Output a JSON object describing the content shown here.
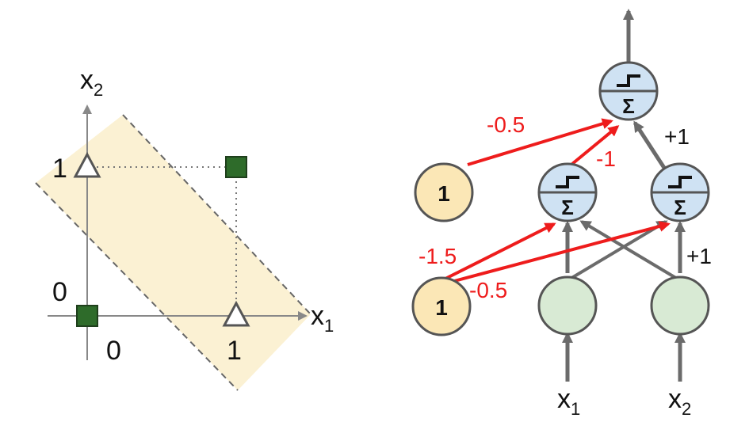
{
  "colors": {
    "band_fill": "#fbf1d3",
    "band_edge": "#666666",
    "square_fill": "#2e6b2a",
    "square_edge": "#1f3f1c",
    "triangle_fill": "#ffffff",
    "triangle_edge": "#555555",
    "axis": "#888888",
    "dotted": "#777777",
    "bias_node": "#fbe7b6",
    "input_node": "#d8ead4",
    "tlu_node": "#cfe2f3",
    "node_edge": "#555555",
    "gray_edge": "#6b6b6b",
    "red_edge": "#ee1c1c",
    "text": "#111111"
  },
  "left_plot": {
    "x_axis": {
      "base": "x",
      "sub": "1"
    },
    "y_axis": {
      "base": "x",
      "sub": "2"
    },
    "ticks": {
      "x0": "0",
      "x1": "1",
      "y0": "0",
      "y1": "1"
    },
    "points": [
      {
        "x": 0,
        "y": 0,
        "marker": "square"
      },
      {
        "x": 1,
        "y": 1,
        "marker": "square"
      },
      {
        "x": 0,
        "y": 1,
        "marker": "triangle"
      },
      {
        "x": 1,
        "y": 0,
        "marker": "triangle"
      }
    ]
  },
  "network": {
    "bias_label": "1",
    "inputs": [
      {
        "base": "x",
        "sub": "1"
      },
      {
        "base": "x",
        "sub": "2"
      }
    ],
    "tlu_symbol": "Σ",
    "weights": {
      "out_from_bias": "-0.5",
      "out_from_h1": "-1",
      "out_from_h2": "+1",
      "h1_from_bias": "-1.5",
      "h2_from_bias": "-0.5",
      "h2_from_x2": "+1"
    }
  }
}
